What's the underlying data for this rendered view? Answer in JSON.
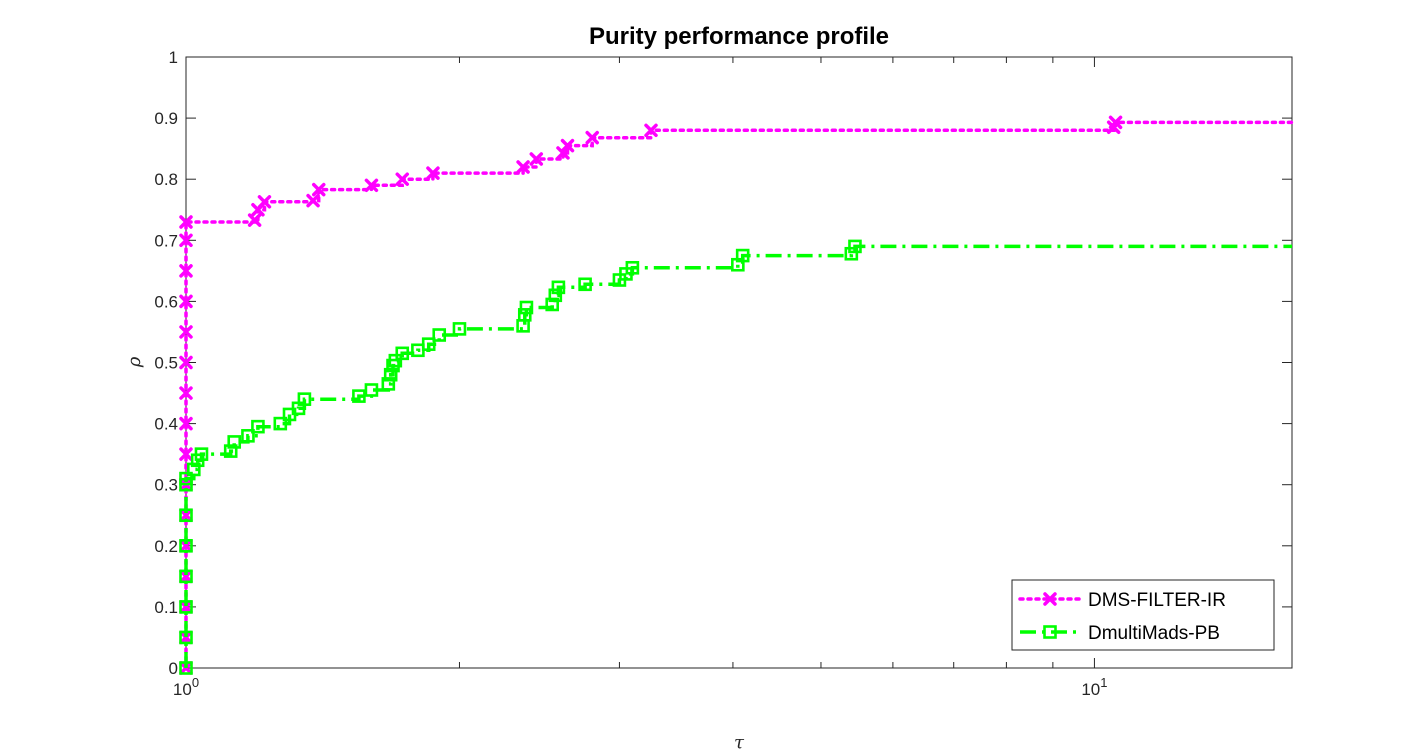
{
  "chart_data": {
    "type": "line",
    "title": "Purity performance profile",
    "xlabel": "τ",
    "ylabel": "ρ",
    "xscale": "log",
    "xlim": [
      1,
      16.5
    ],
    "ylim": [
      0,
      1
    ],
    "grid": false,
    "legend_position": "bottom-right",
    "x_tick_labels": [
      {
        "value": 1,
        "base": "10",
        "exp": "0"
      },
      {
        "value": 10,
        "base": "10",
        "exp": "1"
      }
    ],
    "y_ticks": [
      "0",
      "0.1",
      "0.2",
      "0.3",
      "0.4",
      "0.5",
      "0.6",
      "0.7",
      "0.8",
      "0.9",
      "1"
    ],
    "series": [
      {
        "name": "DMS-FILTER-IR",
        "color": "#ff00ff",
        "marker": "x",
        "linestyle": "dotted",
        "points": [
          [
            1.0,
            0.0
          ],
          [
            1.0,
            0.05
          ],
          [
            1.0,
            0.1
          ],
          [
            1.0,
            0.15
          ],
          [
            1.0,
            0.2
          ],
          [
            1.0,
            0.25
          ],
          [
            1.0,
            0.3
          ],
          [
            1.0,
            0.35
          ],
          [
            1.0,
            0.4
          ],
          [
            1.0,
            0.45
          ],
          [
            1.0,
            0.5
          ],
          [
            1.0,
            0.55
          ],
          [
            1.0,
            0.6
          ],
          [
            1.0,
            0.65
          ],
          [
            1.0,
            0.7
          ],
          [
            1.0,
            0.73
          ],
          [
            1.19,
            0.733
          ],
          [
            1.2,
            0.75
          ],
          [
            1.22,
            0.763
          ],
          [
            1.38,
            0.765
          ],
          [
            1.4,
            0.783
          ],
          [
            1.6,
            0.79
          ],
          [
            1.73,
            0.8
          ],
          [
            1.87,
            0.81
          ],
          [
            2.35,
            0.82
          ],
          [
            2.43,
            0.833
          ],
          [
            2.6,
            0.843
          ],
          [
            2.63,
            0.855
          ],
          [
            2.8,
            0.868
          ],
          [
            3.25,
            0.88
          ],
          [
            10.5,
            0.885
          ],
          [
            10.55,
            0.893
          ],
          [
            16.5,
            0.893
          ]
        ]
      },
      {
        "name": "DmultiMads-PB",
        "color": "#00ff00",
        "marker": "square",
        "linestyle": "dashdot",
        "points": [
          [
            1.0,
            0.0
          ],
          [
            1.0,
            0.05
          ],
          [
            1.0,
            0.1
          ],
          [
            1.0,
            0.15
          ],
          [
            1.0,
            0.2
          ],
          [
            1.0,
            0.25
          ],
          [
            1.0,
            0.3
          ],
          [
            1.0,
            0.31
          ],
          [
            1.02,
            0.325
          ],
          [
            1.03,
            0.34
          ],
          [
            1.04,
            0.35
          ],
          [
            1.12,
            0.355
          ],
          [
            1.13,
            0.37
          ],
          [
            1.17,
            0.38
          ],
          [
            1.2,
            0.395
          ],
          [
            1.27,
            0.4
          ],
          [
            1.3,
            0.415
          ],
          [
            1.33,
            0.425
          ],
          [
            1.35,
            0.44
          ],
          [
            1.55,
            0.445
          ],
          [
            1.6,
            0.455
          ],
          [
            1.67,
            0.465
          ],
          [
            1.68,
            0.48
          ],
          [
            1.69,
            0.495
          ],
          [
            1.7,
            0.503
          ],
          [
            1.73,
            0.515
          ],
          [
            1.8,
            0.52
          ],
          [
            1.85,
            0.53
          ],
          [
            1.9,
            0.545
          ],
          [
            2.0,
            0.555
          ],
          [
            2.35,
            0.56
          ],
          [
            2.36,
            0.578
          ],
          [
            2.37,
            0.59
          ],
          [
            2.53,
            0.595
          ],
          [
            2.55,
            0.61
          ],
          [
            2.57,
            0.623
          ],
          [
            2.75,
            0.628
          ],
          [
            3.0,
            0.635
          ],
          [
            3.05,
            0.645
          ],
          [
            3.1,
            0.655
          ],
          [
            4.05,
            0.66
          ],
          [
            4.1,
            0.675
          ],
          [
            5.4,
            0.678
          ],
          [
            5.45,
            0.69
          ],
          [
            16.5,
            0.69
          ]
        ]
      }
    ]
  }
}
